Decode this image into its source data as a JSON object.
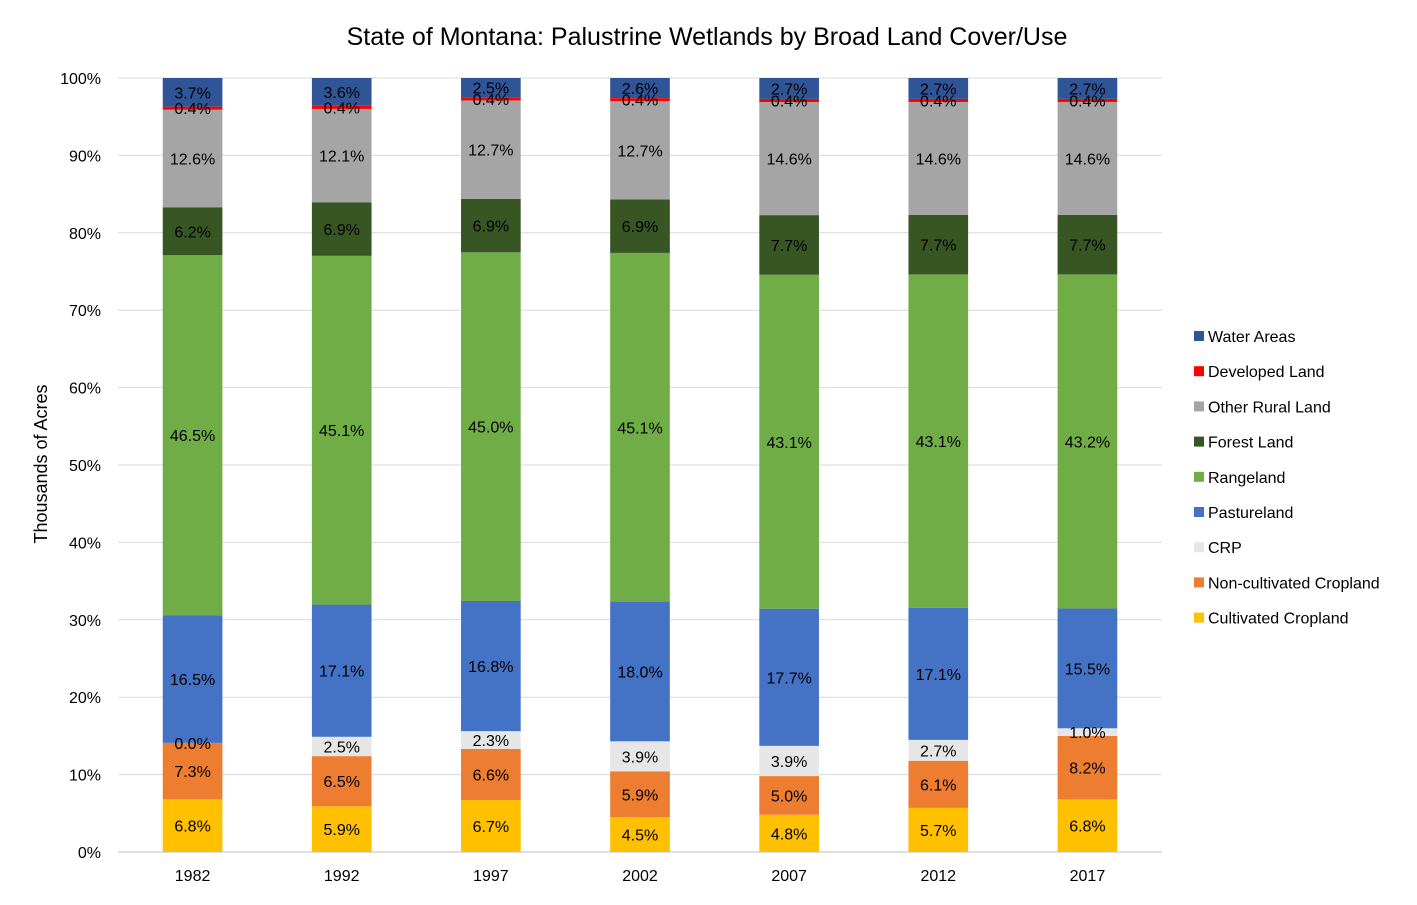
{
  "chart_data": {
    "type": "bar",
    "stacked": true,
    "percent_stacked": true,
    "title": "State of Montana: Palustrine Wetlands by Broad Land Cover/Use",
    "xlabel": "",
    "ylabel": "Thousands of Acres",
    "ylim": [
      0,
      100
    ],
    "y_ticks": [
      "0%",
      "10%",
      "20%",
      "30%",
      "40%",
      "50%",
      "60%",
      "70%",
      "80%",
      "90%",
      "100%"
    ],
    "grid": true,
    "legend_position": "right",
    "categories": [
      "1982",
      "1992",
      "1997",
      "2002",
      "2007",
      "2012",
      "2017"
    ],
    "series": [
      {
        "name": "Cultivated Cropland",
        "color": "#FFC000",
        "values": [
          6.8,
          5.9,
          6.7,
          4.5,
          4.8,
          5.7,
          6.8
        ],
        "labels": [
          "6.8%",
          "5.9%",
          "6.7%",
          "4.5%",
          "4.8%",
          "5.7%",
          "6.8%"
        ]
      },
      {
        "name": "Non-cultivated Cropland",
        "color": "#ED7D31",
        "values": [
          7.3,
          6.5,
          6.6,
          5.9,
          5.0,
          6.1,
          8.2
        ],
        "labels": [
          "7.3%",
          "6.5%",
          "6.6%",
          "5.9%",
          "5.0%",
          "6.1%",
          "8.2%"
        ]
      },
      {
        "name": "CRP",
        "color": "#E7E6E6",
        "values": [
          0.0,
          2.5,
          2.3,
          3.9,
          3.9,
          2.7,
          1.0
        ],
        "labels": [
          "0.0%",
          "2.5%",
          "2.3%",
          "3.9%",
          "3.9%",
          "2.7%",
          "1.0%"
        ]
      },
      {
        "name": "Pastureland",
        "color": "#4472C4",
        "values": [
          16.5,
          17.1,
          16.8,
          18.0,
          17.7,
          17.1,
          15.5
        ],
        "labels": [
          "16.5%",
          "17.1%",
          "16.8%",
          "18.0%",
          "17.7%",
          "17.1%",
          "15.5%"
        ]
      },
      {
        "name": "Rangeland",
        "color": "#70AD47",
        "values": [
          46.5,
          45.1,
          45.0,
          45.1,
          43.1,
          43.1,
          43.2
        ],
        "labels": [
          "46.5%",
          "45.1%",
          "45.0%",
          "45.1%",
          "43.1%",
          "43.1%",
          "43.2%"
        ]
      },
      {
        "name": "Forest Land",
        "color": "#375623",
        "values": [
          6.2,
          6.9,
          6.9,
          6.9,
          7.7,
          7.7,
          7.7
        ],
        "labels": [
          "6.2%",
          "6.9%",
          "6.9%",
          "6.9%",
          "7.7%",
          "7.7%",
          "7.7%"
        ]
      },
      {
        "name": "Other Rural Land",
        "color": "#A5A5A5",
        "values": [
          12.6,
          12.1,
          12.7,
          12.7,
          14.6,
          14.6,
          14.6
        ],
        "labels": [
          "12.6%",
          "12.1%",
          "12.7%",
          "12.7%",
          "14.6%",
          "14.6%",
          "14.6%"
        ]
      },
      {
        "name": "Developed Land",
        "color": "#FF0000",
        "values": [
          0.4,
          0.4,
          0.4,
          0.4,
          0.4,
          0.4,
          0.4
        ],
        "labels": [
          "0.4%",
          "0.4%",
          "0.4%",
          "0.4%",
          "0.4%",
          "0.4%",
          "0.4%"
        ]
      },
      {
        "name": "Water Areas",
        "color": "#2F5597",
        "values": [
          3.7,
          3.6,
          2.5,
          2.6,
          2.7,
          2.7,
          2.7
        ],
        "labels": [
          "3.7%",
          "3.6%",
          "2.5%",
          "2.6%",
          "2.7%",
          "2.7%",
          "2.7%"
        ]
      }
    ],
    "legend_order": [
      "Water Areas",
      "Developed Land",
      "Other Rural Land",
      "Forest Land",
      "Rangeland",
      "Pastureland",
      "CRP",
      "Non-cultivated Cropland",
      "Cultivated Cropland"
    ]
  }
}
